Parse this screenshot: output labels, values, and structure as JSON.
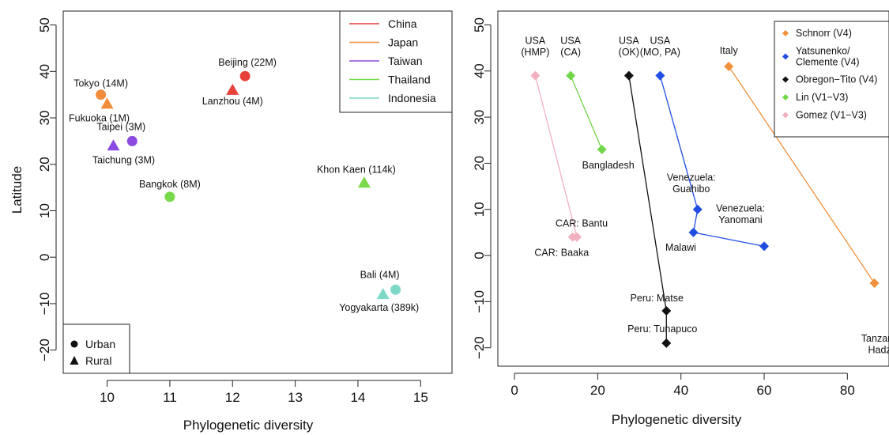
{
  "chart_data": [
    {
      "type": "scatter",
      "xlabel": "Phylogenetic diversity",
      "ylabel": "Latitude",
      "xlim": [
        9.3,
        15.5
      ],
      "ylim": [
        -25,
        53
      ],
      "xticks": [
        10,
        11,
        12,
        13,
        14,
        15
      ],
      "yticks": [
        -20,
        -10,
        0,
        10,
        20,
        30,
        40,
        50
      ],
      "grid": false,
      "legend_position": "top-right",
      "series": [
        {
          "name": "China",
          "color": "#e8413c"
        },
        {
          "name": "Japan",
          "color": "#f08c3a"
        },
        {
          "name": "Taiwan",
          "color": "#8b4be0"
        },
        {
          "name": "Thailand",
          "color": "#78d94a"
        },
        {
          "name": "Indonesia",
          "color": "#7dd8c6"
        }
      ],
      "shape_legend": [
        {
          "label": "Urban",
          "shape": "circle"
        },
        {
          "label": "Rural",
          "shape": "triangle"
        }
      ],
      "points": [
        {
          "label": "Beijing (22M)",
          "x": 12.2,
          "y": 39,
          "series": "China",
          "shape": "circle"
        },
        {
          "label": "Lanzhou (4M)",
          "x": 12.0,
          "y": 36,
          "series": "China",
          "shape": "triangle"
        },
        {
          "label": "Tokyo (14M)",
          "x": 9.9,
          "y": 35,
          "series": "Japan",
          "shape": "circle"
        },
        {
          "label": "Fukuoka (1M)",
          "x": 10.0,
          "y": 33,
          "series": "Japan",
          "shape": "triangle"
        },
        {
          "label": "Taipei (3M)",
          "x": 10.4,
          "y": 25,
          "series": "Taiwan",
          "shape": "circle"
        },
        {
          "label": "Taichung (3M)",
          "x": 10.1,
          "y": 24,
          "series": "Taiwan",
          "shape": "triangle"
        },
        {
          "label": "Bangkok (8M)",
          "x": 11.0,
          "y": 13,
          "series": "Thailand",
          "shape": "circle"
        },
        {
          "label": "Khon Kaen (114k)",
          "x": 14.1,
          "y": 16,
          "series": "Thailand",
          "shape": "triangle"
        },
        {
          "label": "Bali (4M)",
          "x": 14.6,
          "y": -7,
          "series": "Indonesia",
          "shape": "circle"
        },
        {
          "label": "Yogyakarta (389k)",
          "x": 14.4,
          "y": -8,
          "series": "Indonesia",
          "shape": "triangle"
        }
      ]
    },
    {
      "type": "line",
      "xlabel": "Phylogenetic diversity",
      "ylabel": "",
      "xlim": [
        -4,
        90
      ],
      "ylim": [
        -24,
        53
      ],
      "xticks": [
        0,
        20,
        40,
        60,
        80
      ],
      "yticks": [
        -20,
        -10,
        0,
        10,
        20,
        30,
        40,
        50
      ],
      "grid": false,
      "legend_position": "top-right",
      "series": [
        {
          "name": "Schnorr (V4)",
          "color": "#f0913a",
          "points": [
            {
              "label": "Italy",
              "x": 51.5,
              "y": 41
            },
            {
              "label": "Tanzania: Hadza",
              "x": 86.5,
              "y": -6
            }
          ]
        },
        {
          "name": "Yatsunenko/ Clemente (V4)",
          "color": "#1f4ee0",
          "points": [
            {
              "label": "USA (MO, PA)",
              "x": 35,
              "y": 39
            },
            {
              "label": "Venezuela: Guahibo",
              "x": 44,
              "y": 10
            },
            {
              "label": "Malawi",
              "x": 43,
              "y": 5
            },
            {
              "label": "Venezuela: Yanomani",
              "x": 60,
              "y": 2
            }
          ]
        },
        {
          "name": "Obregon−Tito (V4)",
          "color": "#111111",
          "points": [
            {
              "label": "USA (OK)",
              "x": 27.5,
              "y": 39
            },
            {
              "label": "Peru: Matse",
              "x": 36.5,
              "y": -12
            },
            {
              "label": "Peru: Tunapuco",
              "x": 36.5,
              "y": -19
            }
          ]
        },
        {
          "name": "Lin (V1−V3)",
          "color": "#72d64a",
          "points": [
            {
              "label": "USA (CA)",
              "x": 13.5,
              "y": 39
            },
            {
              "label": "Bangladesh",
              "x": 21,
              "y": 23
            }
          ]
        },
        {
          "name": "Gomez (V1−V3)",
          "color": "#f1b0c0",
          "points": [
            {
              "label": "USA (HMP)",
              "x": 5,
              "y": 39
            },
            {
              "label": "CAR: Bantu",
              "x": 15,
              "y": 4
            },
            {
              "label": "CAR: Baaka",
              "x": 14,
              "y": 4
            }
          ]
        }
      ]
    }
  ]
}
